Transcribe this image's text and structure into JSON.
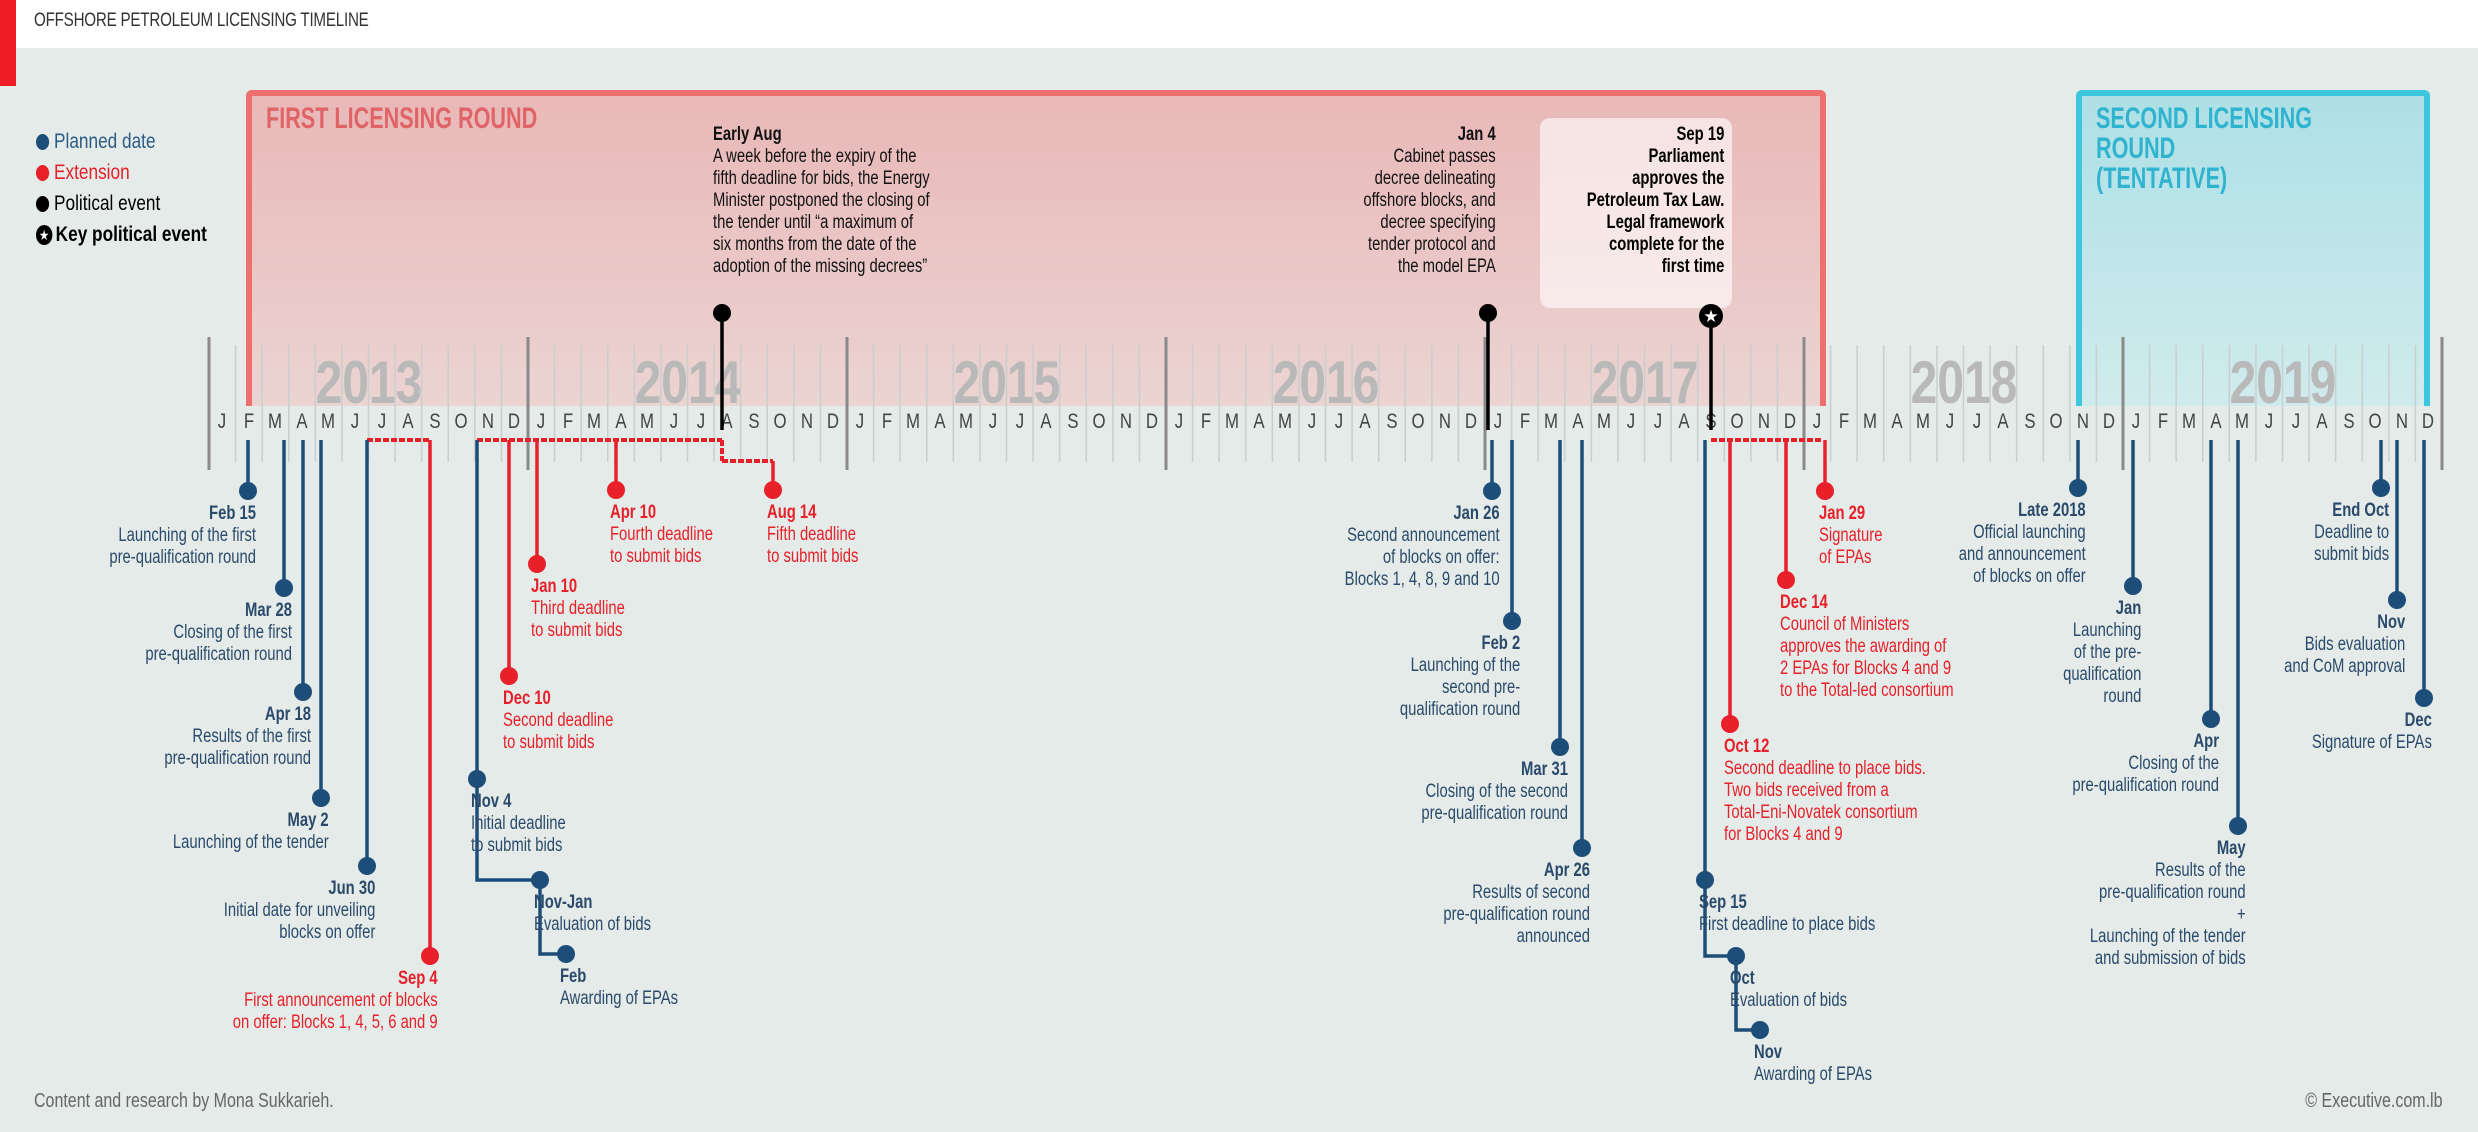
{
  "title": "OFFSHORE PETROLEUM LICENSING TIMELINE",
  "colors": {
    "planned": "#1d4e79",
    "extension": "#e8202a",
    "political": "#000000",
    "first_round": "#ef6e70",
    "second_round": "#3cc6df"
  },
  "legend": [
    {
      "label": "Planned date",
      "icon": "blue-dot",
      "color": "#1d4e79"
    },
    {
      "label": "Extension",
      "icon": "red-dot",
      "color": "#e8202a"
    },
    {
      "label": "Political event",
      "icon": "black-dot",
      "color": "#000000"
    },
    {
      "label": "Key political event",
      "icon": "star-circle",
      "color": "#000000"
    }
  ],
  "rounds": {
    "first": "FIRST LICENSING ROUND",
    "second": "SECOND LICENSING ROUND\n(TENTATIVE)"
  },
  "years": [
    "2013",
    "2014",
    "2015",
    "2016",
    "2017",
    "2018",
    "2019"
  ],
  "months": [
    "J",
    "F",
    "M",
    "A",
    "M",
    "J",
    "J",
    "A",
    "S",
    "O",
    "N",
    "D"
  ],
  "political_events": [
    {
      "date": "Early Aug",
      "text": "A week before the expiry of the\nfifth deadline for bids, the Energy\nMinister postponed the closing of\nthe tender until “a maximum of\nsix months from the date of the\nadoption of the missing decrees”",
      "type": "political"
    },
    {
      "date": "Jan 4",
      "text": "Cabinet passes\ndecree delineating\noffshore blocks, and\ndecree specifying\ntender protocol and\nthe model EPA",
      "type": "political"
    },
    {
      "date": "Sep 19",
      "text": "Parliament\napproves the\nPetroleum Tax Law.\nLegal framework\ncomplete for the\nfirst time",
      "type": "key"
    }
  ],
  "events": [
    {
      "date": "Feb 15",
      "text": "Launching of the first\npre-qualification round",
      "type": "planned"
    },
    {
      "date": "Mar 28",
      "text": "Closing of the first\npre-qualification round",
      "type": "planned"
    },
    {
      "date": "Apr 18",
      "text": "Results of the first\npre-qualification round",
      "type": "planned"
    },
    {
      "date": "May 2",
      "text": "Launching of the tender",
      "type": "planned"
    },
    {
      "date": "Jun 30",
      "text": "Initial date for unveiling\nblocks on offer",
      "type": "planned"
    },
    {
      "date": "Sep 4",
      "text": "First announcement of blocks\non offer: Blocks 1, 4, 5, 6 and 9",
      "type": "extension"
    },
    {
      "date": "Nov 4",
      "text": "Initial deadline\nto submit bids",
      "type": "planned"
    },
    {
      "date": "Nov-Jan",
      "text": "Evaluation of bids",
      "type": "planned"
    },
    {
      "date": "Feb",
      "text": "Awarding of EPAs",
      "type": "planned"
    },
    {
      "date": "Dec 10",
      "text": "Second deadline\nto submit bids",
      "type": "extension"
    },
    {
      "date": "Jan 10",
      "text": "Third deadline\nto submit bids",
      "type": "extension"
    },
    {
      "date": "Apr 10",
      "text": "Fourth deadline\nto submit bids",
      "type": "extension"
    },
    {
      "date": "Aug 14",
      "text": "Fifth deadline\nto submit bids",
      "type": "extension"
    },
    {
      "date": "Jan 26",
      "text": "Second announcement\nof blocks on offer:\nBlocks 1, 4, 8, 9 and 10",
      "type": "planned"
    },
    {
      "date": "Feb 2",
      "text": "Launching of the\nsecond pre-\nqualification round",
      "type": "planned"
    },
    {
      "date": "Mar 31",
      "text": "Closing of the second\npre-qualification round",
      "type": "planned"
    },
    {
      "date": "Apr 26",
      "text": "Results of second\npre-qualification round\nannounced",
      "type": "planned"
    },
    {
      "date": "Sep 15",
      "text": "First deadline to place bids",
      "type": "planned"
    },
    {
      "date": "Oct",
      "text": "Evaluation of bids",
      "type": "planned"
    },
    {
      "date": "Nov",
      "text": "Awarding of EPAs",
      "type": "planned"
    },
    {
      "date": "Oct 12",
      "text": "Second deadline to place bids.\nTwo bids received from a\nTotal-Eni-Novatek consortium\nfor Blocks 4 and 9",
      "type": "extension"
    },
    {
      "date": "Dec 14",
      "text": "Council of Ministers\napproves the awarding of\n2 EPAs for Blocks 4 and 9\nto the Total-led consortium",
      "type": "extension"
    },
    {
      "date": "Jan 29",
      "text": "Signature\nof EPAs",
      "type": "extension"
    },
    {
      "date": "Late 2018",
      "text": "Official launching\nand announcement\nof blocks on offer",
      "type": "planned"
    },
    {
      "date": "Jan",
      "text": "Launching\nof the pre-\nqualification\nround",
      "type": "planned"
    },
    {
      "date": "Apr",
      "text": "Closing of the\npre-qualification round",
      "type": "planned"
    },
    {
      "date": "May",
      "text": "Results of the\npre-qualification round\n+\nLaunching of the tender\nand submission of bids",
      "type": "planned"
    },
    {
      "date": "End Oct",
      "text": "Deadline to\nsubmit bids",
      "type": "planned"
    },
    {
      "date": "Nov",
      "text": "Bids evaluation\nand CoM approval",
      "type": "planned"
    },
    {
      "date": "Dec",
      "text": "Signature of EPAs",
      "type": "planned"
    }
  ],
  "footer": {
    "credit": "Content and research by Mona Sukkarieh.",
    "copyright": "© Executive.com.lb"
  }
}
